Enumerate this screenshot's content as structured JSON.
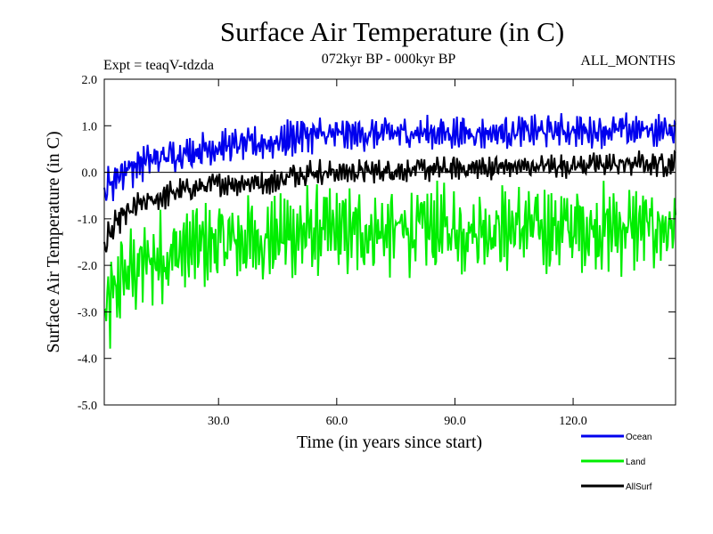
{
  "chart_data": {
    "type": "line",
    "title": "Surface Air Temperature (in C)",
    "subtitle": "072kyr BP - 000kyr BP",
    "left_label": "Expt = teaqV-tdzda",
    "right_label": "ALL_MONTHS",
    "xlabel": "Time (in years since start)",
    "ylabel": "Surface Air Temperature (in C)",
    "xlim": [
      1,
      146
    ],
    "ylim": [
      -5.0,
      2.0
    ],
    "xticks": [
      30,
      60,
      90,
      120
    ],
    "xtick_labels": [
      "30.0",
      "60.0",
      "90.0",
      "120.0"
    ],
    "yticks": [
      -5,
      -4,
      -3,
      -2,
      -1,
      0,
      1,
      2
    ],
    "ytick_labels": [
      "-5.0",
      "-4.0",
      "-3.0",
      "-2.0",
      "-1.0",
      "0.0",
      "1.0",
      "2.0"
    ],
    "points_per_year": 4,
    "series": [
      {
        "name": "Ocean",
        "color": "#0000ee",
        "envelope_years": [
          1,
          5,
          10,
          20,
          30,
          45,
          50,
          60,
          80,
          100,
          120,
          146
        ],
        "envelope_mean": [
          -0.4,
          0.0,
          0.2,
          0.4,
          0.55,
          0.65,
          0.8,
          0.8,
          0.85,
          0.85,
          0.9,
          0.9
        ],
        "envelope_amplitude": [
          0.35,
          0.35,
          0.35,
          0.3,
          0.3,
          0.3,
          0.35,
          0.3,
          0.3,
          0.3,
          0.3,
          0.3
        ]
      },
      {
        "name": "Land",
        "color": "#00ee00",
        "envelope_years": [
          1,
          5,
          10,
          20,
          30,
          45,
          50,
          60,
          80,
          100,
          120,
          146
        ],
        "envelope_mean": [
          -3.2,
          -2.3,
          -2.0,
          -1.7,
          -1.5,
          -1.4,
          -1.3,
          -1.3,
          -1.25,
          -1.2,
          -1.2,
          -1.2
        ],
        "envelope_amplitude": [
          0.9,
          0.9,
          0.85,
          0.8,
          0.8,
          0.8,
          0.85,
          0.8,
          0.8,
          0.8,
          0.8,
          0.8
        ]
      },
      {
        "name": "AllSurf",
        "color": "#000000",
        "envelope_years": [
          1,
          5,
          10,
          20,
          30,
          45,
          50,
          60,
          80,
          100,
          120,
          146
        ],
        "envelope_mean": [
          -1.6,
          -1.0,
          -0.7,
          -0.4,
          -0.25,
          -0.2,
          0.0,
          0.0,
          0.05,
          0.1,
          0.15,
          0.2
        ],
        "envelope_amplitude": [
          0.3,
          0.3,
          0.25,
          0.22,
          0.22,
          0.22,
          0.25,
          0.22,
          0.22,
          0.22,
          0.22,
          0.25
        ]
      }
    ]
  }
}
